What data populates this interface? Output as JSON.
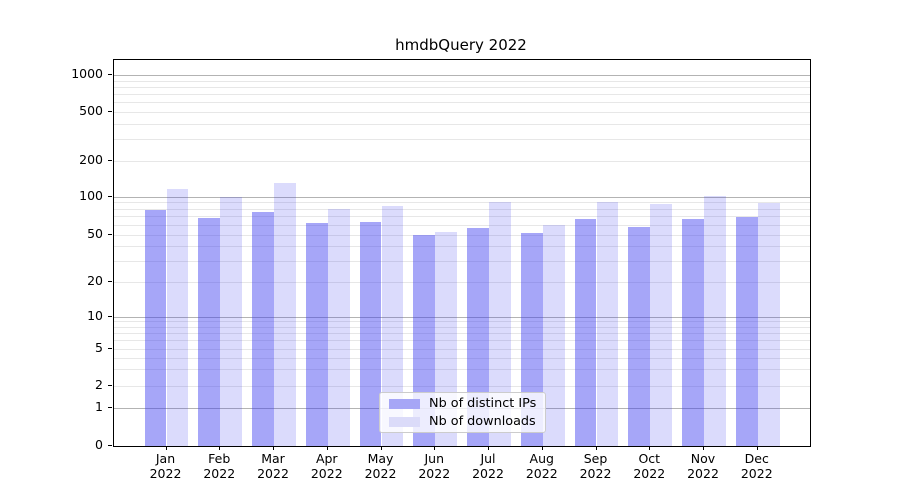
{
  "title": "hmdbQuery 2022",
  "chart_data": {
    "type": "bar",
    "title": "hmdbQuery 2022",
    "categories": [
      "Jan 2022",
      "Feb 2022",
      "Mar 2022",
      "Apr 2022",
      "May 2022",
      "Jun 2022",
      "Jul 2022",
      "Aug 2022",
      "Sep 2022",
      "Oct 2022",
      "Nov 2022",
      "Dec 2022"
    ],
    "series": [
      {
        "name": "Nb of distinct IPs",
        "color": "rgba(58,58,240,0.45)",
        "legend_color": "#a6a6f6",
        "values": [
          78,
          68,
          75,
          62,
          63,
          50,
          56,
          51,
          66,
          57,
          67,
          69
        ]
      },
      {
        "name": "Nb of downloads",
        "color": "rgba(58,58,240,0.18)",
        "legend_color": "#dbdbf9",
        "values": [
          116,
          100,
          130,
          80,
          85,
          52,
          90,
          60,
          90,
          88,
          101,
          89
        ]
      }
    ],
    "yscale": "symlog",
    "yticks": [
      0,
      1,
      2,
      5,
      10,
      20,
      50,
      100,
      200,
      500,
      1000
    ],
    "ylim": [
      0,
      1300
    ],
    "xlabel": "",
    "ylabel": "",
    "grid": true,
    "legend_position": "lower center",
    "colors": {
      "major_grid": "#b3b3b3",
      "minor_grid": "#e7e7e7",
      "spine": "#000000",
      "text": "#000000"
    }
  }
}
